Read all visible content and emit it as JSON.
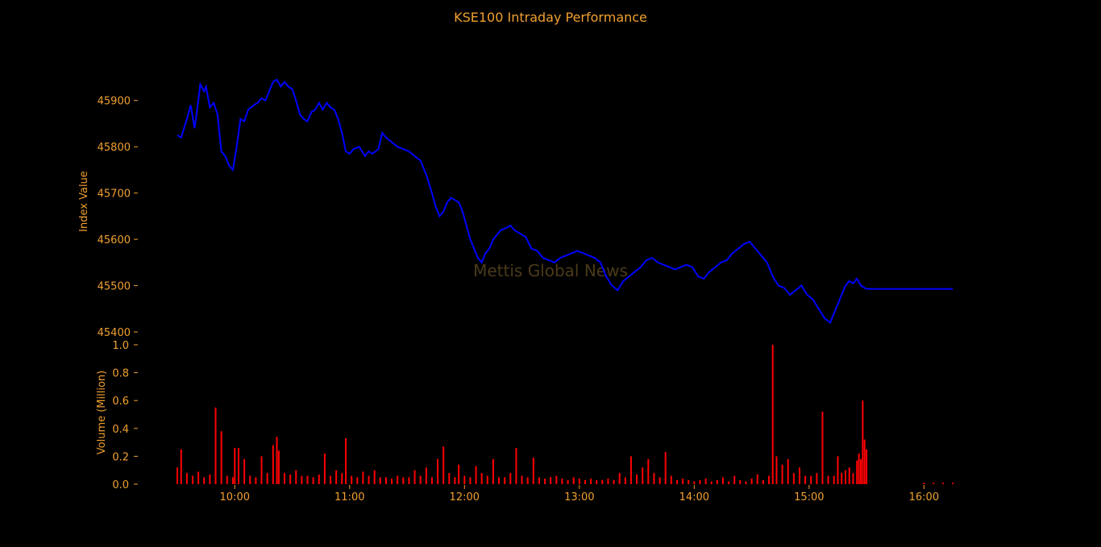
{
  "chart_data": [
    {
      "type": "line",
      "title": "KSE100 Intraday Performance",
      "xlabel": "",
      "ylabel": "Index Value",
      "xlim": [
        "09:30",
        "16:15"
      ],
      "ylim": [
        45400,
        45950
      ],
      "yticks": [
        45400,
        45500,
        45600,
        45700,
        45800,
        45900
      ],
      "grid": false,
      "watermark": "Mettis Global News",
      "series": [
        {
          "x": [
            "09:30",
            "09:32",
            "09:35",
            "09:37",
            "09:39",
            "09:40",
            "09:42",
            "09:44",
            "09:45",
            "09:47",
            "09:49",
            "09:51",
            "09:53",
            "09:55",
            "09:57",
            "09:59",
            "10:01",
            "10:03",
            "10:05",
            "10:07",
            "10:10",
            "10:12",
            "10:14",
            "10:16",
            "10:18",
            "10:20",
            "10:22",
            "10:24",
            "10:26",
            "10:28",
            "10:30",
            "10:32",
            "10:34",
            "10:36",
            "10:38",
            "10:40",
            "10:42",
            "10:44",
            "10:46",
            "10:48",
            "10:50",
            "10:52",
            "10:54",
            "10:56",
            "10:58",
            "11:00",
            "11:02",
            "11:05",
            "11:08",
            "11:10",
            "11:12",
            "11:15",
            "11:17",
            "11:19",
            "11:22",
            "11:25",
            "11:28",
            "11:31",
            "11:34",
            "11:37",
            "11:40",
            "11:43",
            "11:45",
            "11:47",
            "11:49",
            "11:51",
            "11:53",
            "11:55",
            "11:57",
            "11:59",
            "12:01",
            "12:03",
            "12:05",
            "12:07",
            "12:09",
            "12:11",
            "12:13",
            "12:15",
            "12:17",
            "12:19",
            "12:22",
            "12:24",
            "12:26",
            "12:28",
            "12:30",
            "12:32",
            "12:35",
            "12:38",
            "12:41",
            "12:44",
            "12:47",
            "12:50",
            "12:53",
            "12:56",
            "12:59",
            "13:02",
            "13:05",
            "13:08",
            "13:11",
            "13:14",
            "13:17",
            "13:20",
            "13:23",
            "13:26",
            "13:29",
            "13:32",
            "13:35",
            "13:38",
            "13:41",
            "13:44",
            "13:47",
            "13:50",
            "13:53",
            "13:56",
            "13:59",
            "14:02",
            "14:05",
            "14:08",
            "14:11",
            "14:14",
            "14:17",
            "14:20",
            "14:23",
            "14:26",
            "14:29",
            "14:32",
            "14:35",
            "14:38",
            "14:41",
            "14:44",
            "14:47",
            "14:50",
            "14:53",
            "14:56",
            "14:59",
            "15:02",
            "15:05",
            "15:08",
            "15:11",
            "15:13",
            "15:15",
            "15:17",
            "15:19",
            "15:21",
            "15:23",
            "15:25",
            "15:27",
            "15:29",
            "15:30",
            "16:15"
          ],
          "values": [
            45825,
            45820,
            45860,
            45890,
            45840,
            45870,
            45935,
            45920,
            45930,
            45885,
            45895,
            45870,
            45790,
            45780,
            45760,
            45750,
            45800,
            45860,
            45855,
            45880,
            45890,
            45895,
            45905,
            45900,
            45920,
            45940,
            45945,
            45930,
            45940,
            45930,
            45925,
            45900,
            45870,
            45860,
            45855,
            45875,
            45880,
            45895,
            45880,
            45895,
            45885,
            45880,
            45860,
            45830,
            45790,
            45785,
            45795,
            45800,
            45780,
            45790,
            45785,
            45795,
            45830,
            45820,
            45810,
            45800,
            45795,
            45790,
            45780,
            45770,
            45740,
            45700,
            45670,
            45650,
            45660,
            45680,
            45690,
            45685,
            45680,
            45660,
            45630,
            45600,
            45580,
            45560,
            45550,
            45570,
            45580,
            45600,
            45610,
            45620,
            45625,
            45630,
            45620,
            45615,
            45610,
            45605,
            45580,
            45575,
            45560,
            45555,
            45550,
            45560,
            45565,
            45570,
            45575,
            45570,
            45565,
            45560,
            45550,
            45520,
            45500,
            45490,
            45510,
            45520,
            45530,
            45540,
            45555,
            45560,
            45550,
            45545,
            45540,
            45535,
            45540,
            45545,
            45540,
            45520,
            45515,
            45530,
            45540,
            45550,
            45555,
            45570,
            45580,
            45590,
            45595,
            45580,
            45565,
            45550,
            45520,
            45500,
            45495,
            45480,
            45490,
            45500,
            45480,
            45470,
            45450,
            45430,
            45420,
            45440,
            45460,
            45480,
            45500,
            45510,
            45505,
            45515,
            45500,
            45495,
            45493,
            45493
          ]
        }
      ]
    },
    {
      "type": "bar",
      "title": "",
      "xlabel": "",
      "ylabel": "Volume (Million)",
      "xlim": [
        "09:30",
        "16:15"
      ],
      "ylim": [
        0,
        1.0
      ],
      "yticks": [
        "0.0",
        "0.2",
        "0.4",
        "0.6",
        "0.8",
        "1.0"
      ],
      "xticks": [
        "10:00",
        "11:00",
        "12:00",
        "13:00",
        "14:00",
        "15:00",
        "16:00"
      ],
      "grid": false,
      "series": [
        {
          "x": [
            "09:30",
            "09:32",
            "09:35",
            "09:38",
            "09:41",
            "09:44",
            "09:47",
            "09:50",
            "09:53",
            "09:56",
            "09:59",
            "10:00",
            "10:02",
            "10:05",
            "10:08",
            "10:11",
            "10:14",
            "10:17",
            "10:20",
            "10:22",
            "10:23",
            "10:26",
            "10:29",
            "10:32",
            "10:35",
            "10:38",
            "10:41",
            "10:44",
            "10:47",
            "10:50",
            "10:53",
            "10:56",
            "10:58",
            "11:01",
            "11:04",
            "11:07",
            "11:10",
            "11:13",
            "11:16",
            "11:19",
            "11:22",
            "11:25",
            "11:28",
            "11:31",
            "11:34",
            "11:37",
            "11:40",
            "11:43",
            "11:46",
            "11:49",
            "11:52",
            "11:55",
            "11:57",
            "12:00",
            "12:03",
            "12:06",
            "12:09",
            "12:12",
            "12:15",
            "12:18",
            "12:21",
            "12:24",
            "12:27",
            "12:30",
            "12:33",
            "12:36",
            "12:39",
            "12:42",
            "12:45",
            "12:48",
            "12:51",
            "12:54",
            "12:57",
            "13:00",
            "13:03",
            "13:06",
            "13:09",
            "13:12",
            "13:15",
            "13:18",
            "13:21",
            "13:24",
            "13:27",
            "13:30",
            "13:33",
            "13:36",
            "13:39",
            "13:42",
            "13:45",
            "13:48",
            "13:51",
            "13:54",
            "13:57",
            "14:00",
            "14:03",
            "14:06",
            "14:09",
            "14:12",
            "14:15",
            "14:18",
            "14:21",
            "14:24",
            "14:27",
            "14:30",
            "14:33",
            "14:36",
            "14:39",
            "14:41",
            "14:43",
            "14:46",
            "14:49",
            "14:52",
            "14:55",
            "14:58",
            "15:01",
            "15:04",
            "15:07",
            "15:10",
            "15:13",
            "15:15",
            "15:17",
            "15:19",
            "15:21",
            "15:23",
            "15:25",
            "15:26",
            "15:27",
            "15:28",
            "15:29",
            "15:30",
            "16:00",
            "16:05",
            "16:10",
            "16:15"
          ],
          "values": [
            0.12,
            0.25,
            0.08,
            0.06,
            0.09,
            0.05,
            0.07,
            0.55,
            0.38,
            0.06,
            0.05,
            0.26,
            0.26,
            0.18,
            0.06,
            0.05,
            0.2,
            0.08,
            0.28,
            0.34,
            0.24,
            0.08,
            0.07,
            0.1,
            0.06,
            0.06,
            0.05,
            0.07,
            0.22,
            0.06,
            0.1,
            0.08,
            0.33,
            0.06,
            0.05,
            0.09,
            0.06,
            0.1,
            0.05,
            0.05,
            0.04,
            0.06,
            0.05,
            0.05,
            0.1,
            0.06,
            0.12,
            0.05,
            0.18,
            0.27,
            0.08,
            0.05,
            0.14,
            0.06,
            0.05,
            0.13,
            0.08,
            0.06,
            0.18,
            0.05,
            0.05,
            0.08,
            0.26,
            0.06,
            0.05,
            0.19,
            0.05,
            0.04,
            0.05,
            0.06,
            0.04,
            0.03,
            0.05,
            0.04,
            0.03,
            0.04,
            0.03,
            0.03,
            0.04,
            0.03,
            0.08,
            0.05,
            0.2,
            0.07,
            0.12,
            0.18,
            0.08,
            0.05,
            0.23,
            0.06,
            0.03,
            0.04,
            0.03,
            0.02,
            0.03,
            0.04,
            0.02,
            0.03,
            0.05,
            0.02,
            0.06,
            0.03,
            0.02,
            0.04,
            0.07,
            0.03,
            0.06,
            1.0,
            0.2,
            0.14,
            0.18,
            0.08,
            0.12,
            0.06,
            0.06,
            0.08,
            0.52,
            0.06,
            0.06,
            0.2,
            0.08,
            0.1,
            0.12,
            0.08,
            0.17,
            0.22,
            0.18,
            0.6,
            0.32,
            0.25,
            0.01,
            0.01,
            0.01,
            0.01
          ]
        }
      ]
    }
  ],
  "colors": {
    "background": "#000000",
    "text": "#f0a030",
    "line": "#0000ff",
    "bars": "#ff0000",
    "watermark": "#4a3a1a"
  }
}
